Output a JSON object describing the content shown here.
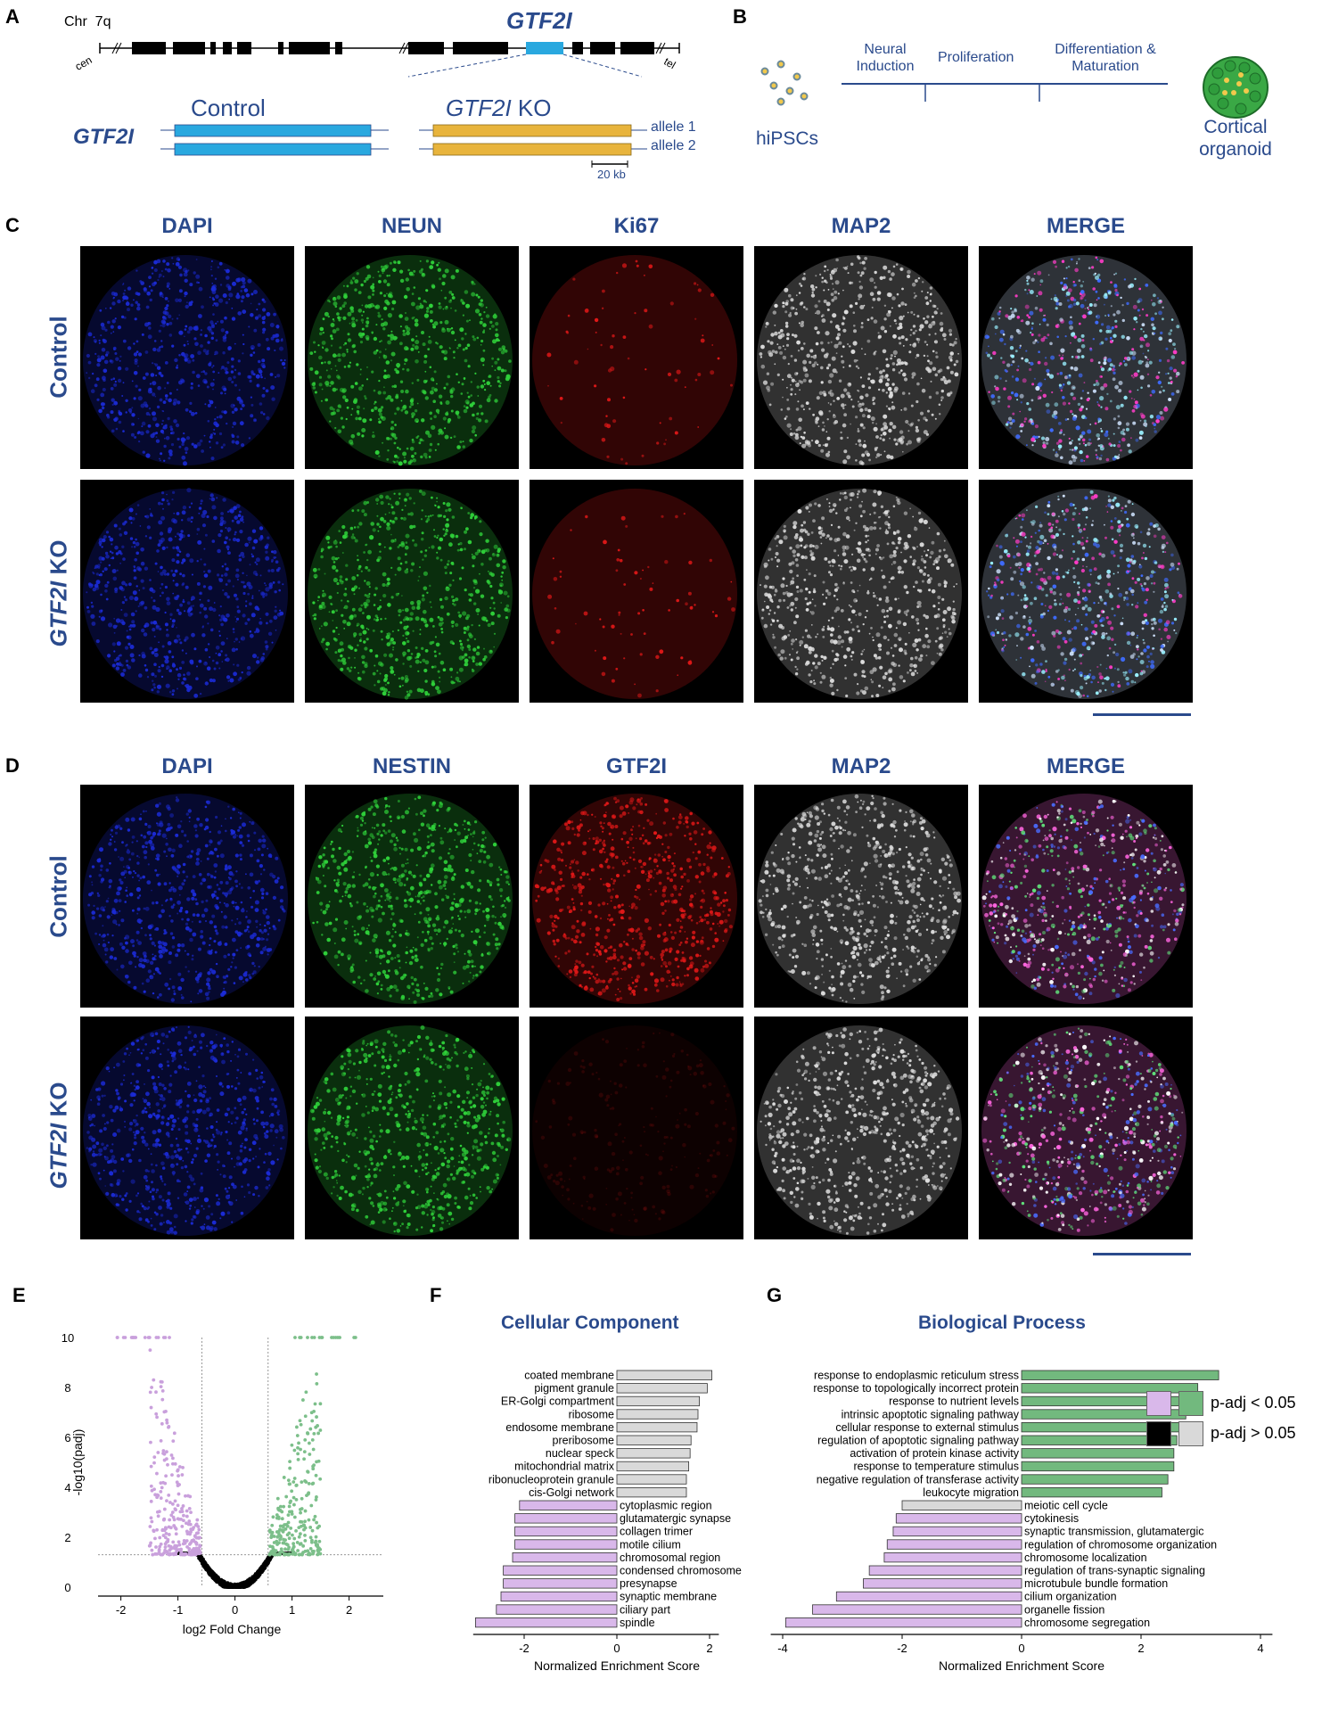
{
  "panel_labels": [
    "A",
    "B",
    "C",
    "D",
    "E",
    "F",
    "G"
  ],
  "panelA": {
    "chr_label": "Chr",
    "chr_arm": "7q",
    "cen": "cen",
    "tel": "tel",
    "gene_title": "GTF2I",
    "gene_row_label": "GTF2I",
    "control_label": "Control",
    "ko_label_italic": "GTF2I",
    "ko_label_suffix": " KO",
    "allele1": "allele 1",
    "allele2": "allele 2",
    "scale_label": "20 kb",
    "colors": {
      "control": "#29a8df",
      "ko": "#e8b43c"
    }
  },
  "panelB": {
    "source_label": "hiPSCs",
    "stages": [
      "Neural Induction",
      "Proliferation",
      "Differentiation & Maturation"
    ],
    "stage1_line1": "Neural",
    "stage1_line2": "Induction",
    "stage3_line1": "Differentiation &",
    "stage3_line2": "Maturation",
    "target_line1": "Cortical",
    "target_line2": "organoid"
  },
  "panelC": {
    "channels": [
      "DAPI",
      "NEUN",
      "Ki67",
      "MAP2",
      "MERGE"
    ],
    "rows": [
      "Control",
      "GTF2I KO"
    ],
    "row2_italic": "GTF2I",
    "row2_suffix": " KO"
  },
  "panelD": {
    "channels": [
      "DAPI",
      "NESTIN",
      "GTF2I",
      "MAP2",
      "MERGE"
    ],
    "rows": [
      "Control",
      "GTF2I KO"
    ],
    "row2_italic": "GTF2I",
    "row2_suffix": " KO"
  },
  "chart_data": [
    {
      "type": "scatter",
      "panel": "E",
      "xlabel": "log2 Fold Change",
      "ylabel": "-log10(padj)",
      "xticks": [
        -2,
        -1,
        0,
        1,
        2
      ],
      "yticks": [
        0,
        2,
        4,
        6,
        8,
        10
      ],
      "xlim": [
        -2.4,
        2.6
      ],
      "ylim": [
        0,
        10
      ],
      "thresholds": {
        "x": [
          -0.58,
          0.58
        ],
        "y": 1.3
      },
      "colors": {
        "down": "#c9a0dc",
        "up": "#7cbf8a",
        "ns": "#000000"
      }
    },
    {
      "type": "bar",
      "panel": "F",
      "title": "Cellular Component",
      "xlabel": "Normalized Enrichment  Score",
      "xticks": [
        -2,
        0,
        2
      ],
      "xlim": [
        -3.1,
        2.2
      ],
      "categories": [
        "coated membrane",
        "pigment granule",
        "ER-Golgi compartment",
        "ribosome",
        "endosome membrane",
        "preribosome",
        "nuclear speck",
        "mitochondrial matrix",
        "ribonucleoprotein granule",
        "cis-Golgi network",
        "cytoplasmic region",
        "glutamatergic synapse",
        "collagen trimer",
        "motile cilium",
        "chromosomal region",
        "condensed chromosome",
        "presynapse",
        "synaptic membrane",
        "ciliary part",
        "spindle"
      ],
      "values": [
        2.05,
        1.95,
        1.78,
        1.75,
        1.73,
        1.6,
        1.58,
        1.55,
        1.5,
        1.5,
        -2.1,
        -2.2,
        -2.2,
        -2.2,
        -2.25,
        -2.45,
        -2.45,
        -2.5,
        -2.6,
        -3.05
      ],
      "significant": [
        false,
        false,
        false,
        false,
        false,
        false,
        false,
        false,
        false,
        false,
        true,
        true,
        true,
        true,
        true,
        true,
        true,
        true,
        true,
        true
      ]
    },
    {
      "type": "bar",
      "panel": "G",
      "title": "Biological Process",
      "xlabel": "Normalized Enrichment  Score",
      "xticks": [
        -4,
        -2,
        0,
        2,
        4
      ],
      "xlim": [
        -4.2,
        4.2
      ],
      "categories": [
        "response to endoplasmic reticulum stress",
        "response to topologically incorrect protein",
        "response to nutrient levels",
        "intrinsic apoptotic signaling pathway",
        "cellular response to external stimulus",
        "regulation of apoptotic signaling pathway",
        "activation of protein kinase activity",
        "response to temperature stimulus",
        "negative regulation of transferase activity",
        "leukocyte migration",
        "meiotic cell cycle",
        "cytokinesis",
        "synaptic transmission, glutamatergic",
        "regulation of chromosome organization",
        "chromosome localization",
        "regulation of trans-synaptic signaling",
        "microtubule bundle formation",
        "cilium organization",
        "organelle fission",
        "chromosome segregation"
      ],
      "values": [
        3.3,
        2.95,
        2.9,
        2.75,
        2.75,
        2.6,
        2.55,
        2.55,
        2.45,
        2.35,
        -2.0,
        -2.1,
        -2.15,
        -2.25,
        -2.3,
        -2.55,
        -2.65,
        -3.1,
        -3.5,
        -3.95
      ],
      "significant": [
        true,
        true,
        true,
        true,
        true,
        true,
        true,
        true,
        true,
        true,
        false,
        true,
        true,
        true,
        true,
        true,
        true,
        true,
        true,
        true
      ],
      "legend": [
        "p-adj < 0.05",
        "p-adj > 0.05"
      ],
      "legend_placement": "right",
      "colors": {
        "sig_up": "#72b97e",
        "sig_down": "#d9b8ea",
        "ns": "#d9d9d9",
        "legend_ns_down": "#000000"
      }
    }
  ]
}
